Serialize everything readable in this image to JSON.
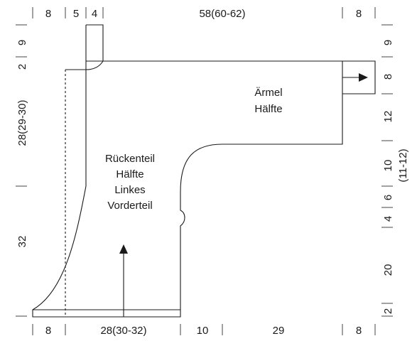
{
  "top_measurements": [
    "8",
    "5",
    "4",
    "58(60-62)",
    "8"
  ],
  "bottom_measurements": [
    "8",
    "28(30-32)",
    "10",
    "29",
    "8"
  ],
  "left_measurements": [
    "9",
    "2",
    "28(29-30)",
    "32"
  ],
  "right_measurements": [
    "9",
    "8",
    "12",
    "10",
    "(11-12)",
    "6",
    "4",
    "20",
    "2"
  ],
  "sleeve_label": [
    "Ärmel",
    "Hälfte"
  ],
  "body_label": [
    "Rückenteil",
    "Hälfte",
    "Linkes",
    "Vorderteil"
  ],
  "colors": {
    "line": "#1a1a1a",
    "background": "#ffffff"
  }
}
